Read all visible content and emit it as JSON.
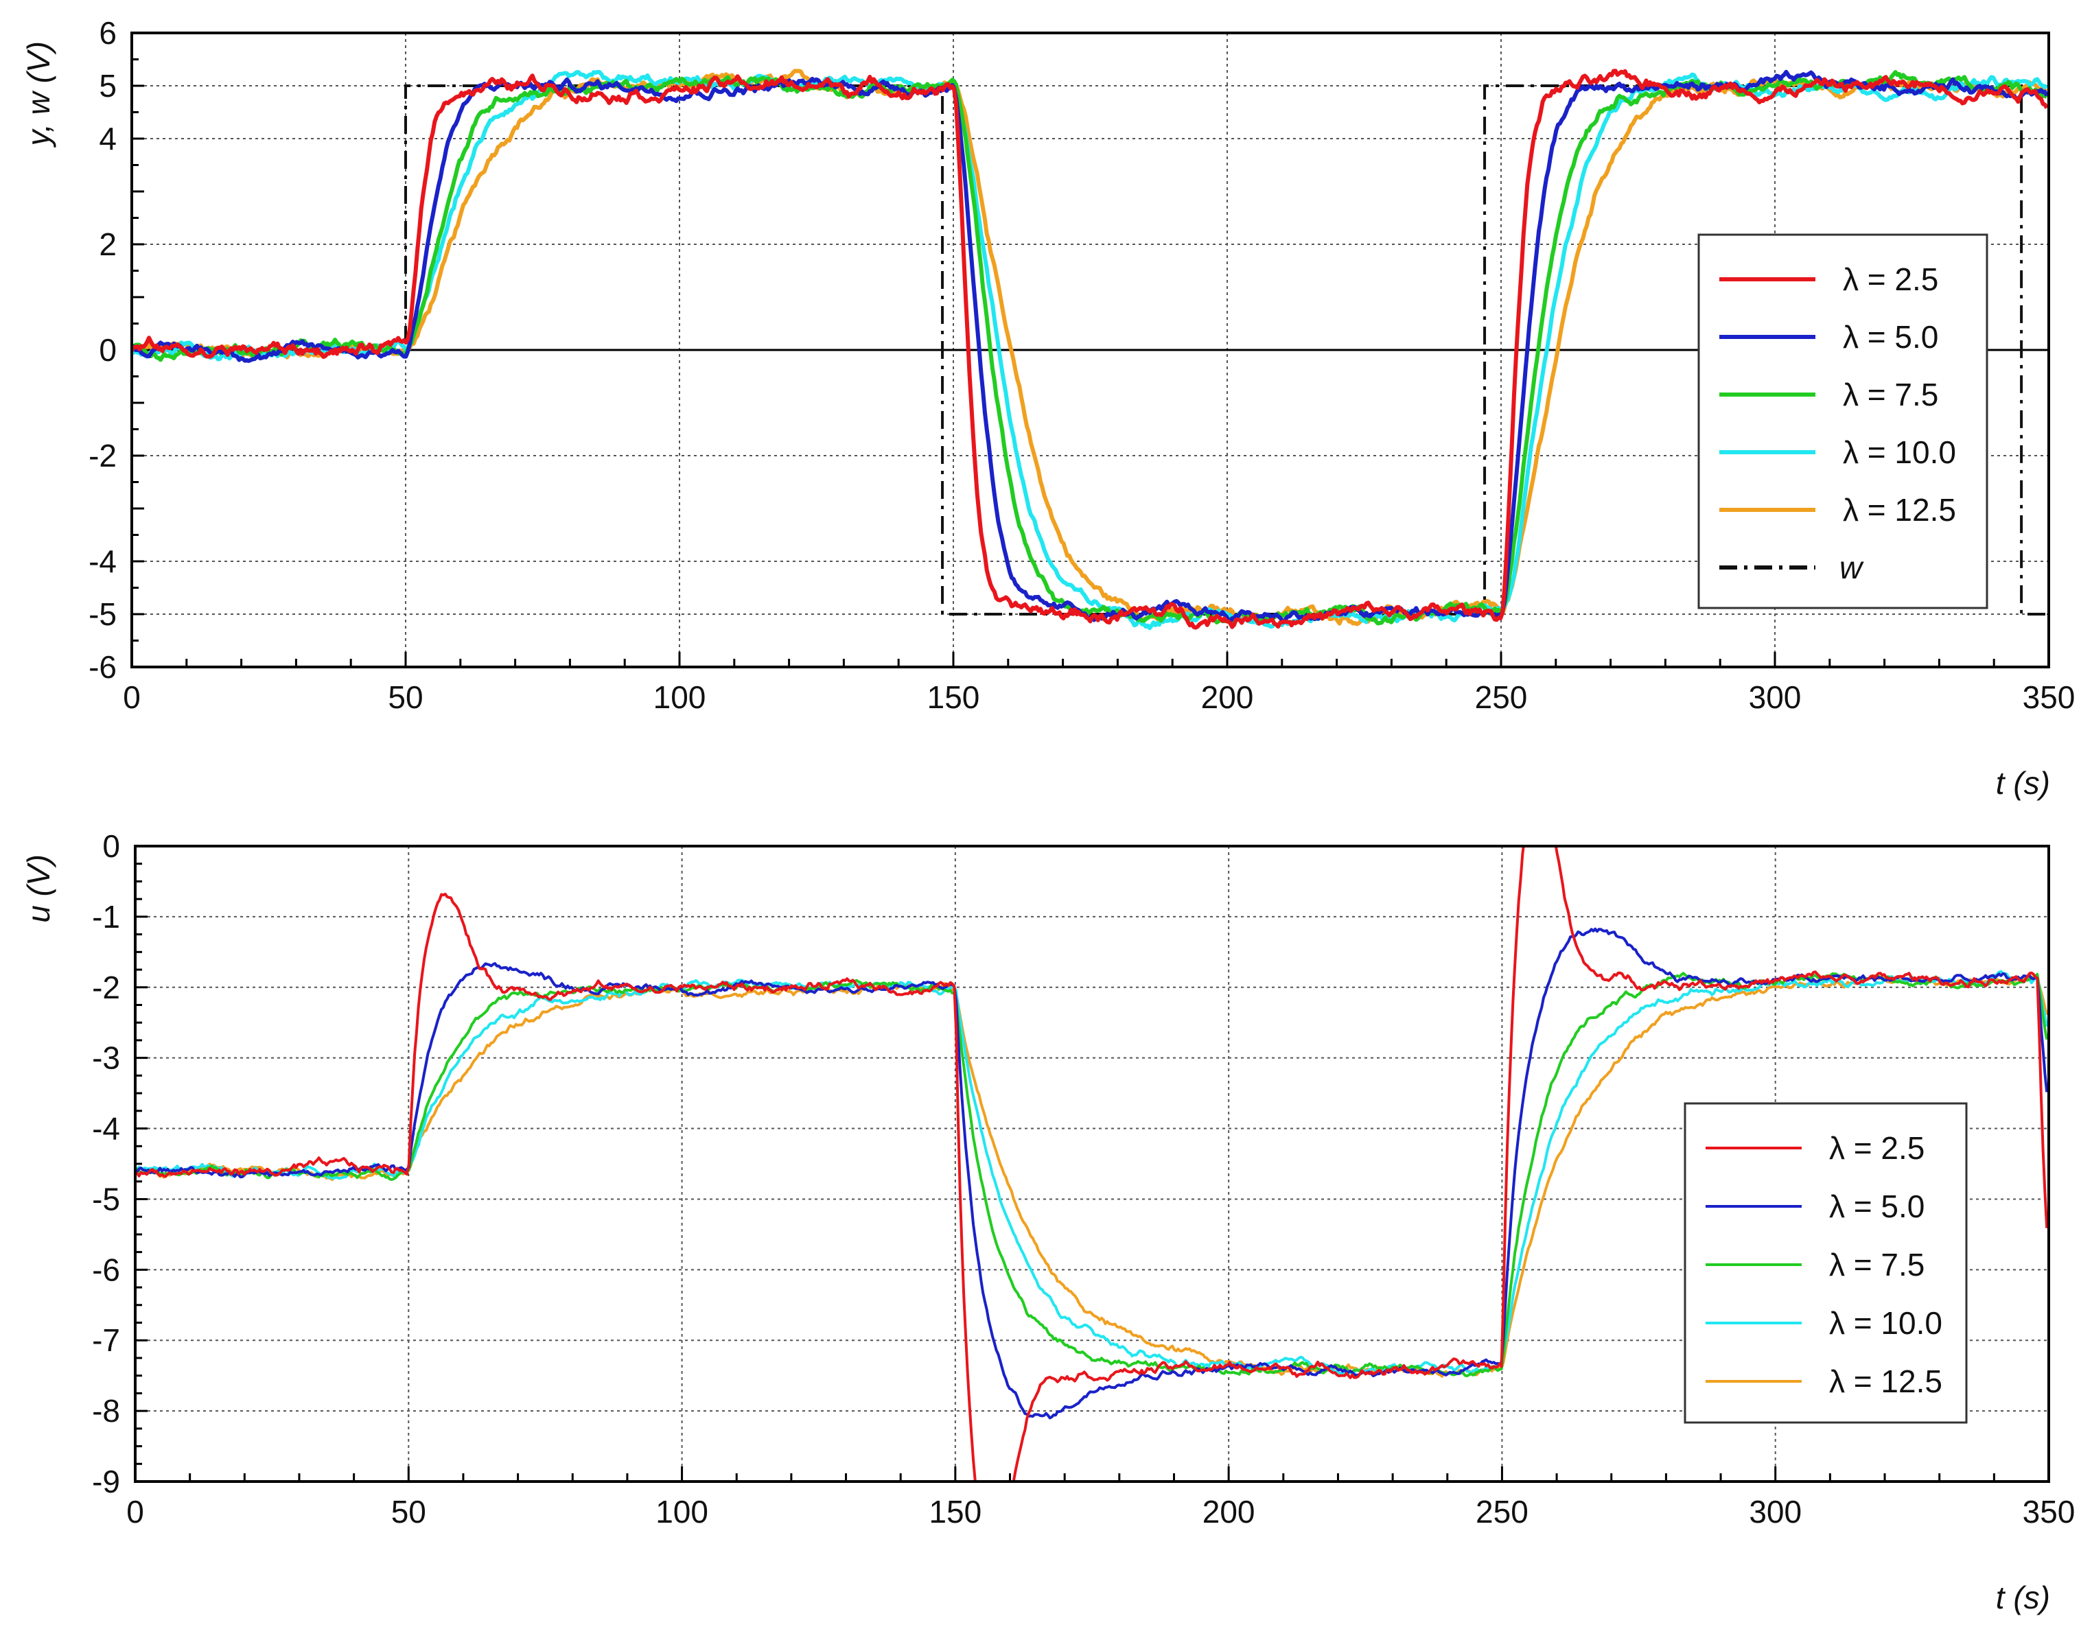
{
  "chart_data": [
    {
      "type": "line",
      "ylabel": "y, w (V)",
      "xlabel": "t (s)",
      "xlim": [
        0,
        350
      ],
      "ylim": [
        -6,
        6
      ],
      "xticks": [
        "0",
        "50",
        "100",
        "150",
        "200",
        "250",
        "300",
        "350"
      ],
      "yticks": [
        "-6",
        "-5",
        "-4",
        "-2",
        "0",
        "2",
        "4",
        "5",
        "6"
      ],
      "grid": true,
      "legend_position": "right",
      "series": [
        {
          "name": "λ = 2.5",
          "lambda": 2.5,
          "color": "#e8161c",
          "tau": 3.5,
          "overshoot": 0.25
        },
        {
          "name": "λ = 5.0",
          "lambda": 5.0,
          "color": "#1a22c8",
          "tau": 6.0,
          "overshoot": 0.3
        },
        {
          "name": "λ = 7.5",
          "lambda": 7.5,
          "color": "#22cc22",
          "tau": 8.5,
          "overshoot": 0.05
        },
        {
          "name": "λ = 10.0",
          "lambda": 10.0,
          "color": "#22e6f0",
          "tau": 10.5,
          "overshoot": 0.0
        },
        {
          "name": "λ = 12.5",
          "lambda": 12.5,
          "color": "#f0a020",
          "tau": 13.0,
          "overshoot": 0.0
        }
      ],
      "reference": {
        "name": "w",
        "steps": [
          [
            0,
            0
          ],
          [
            50,
            5
          ],
          [
            148,
            -5
          ],
          [
            247,
            5
          ],
          [
            345,
            -5
          ]
        ]
      },
      "step_times": [
        50,
        150,
        250,
        348
      ],
      "levels": [
        0,
        5,
        -5,
        5,
        4
      ]
    },
    {
      "type": "line",
      "ylabel": "u (V)",
      "xlabel": "t (s)",
      "xlim": [
        0,
        350
      ],
      "ylim": [
        -9,
        0
      ],
      "xticks": [
        "0",
        "50",
        "100",
        "150",
        "200",
        "250",
        "300",
        "350"
      ],
      "yticks": [
        "-9",
        "-8",
        "-7",
        "-6",
        "-5",
        "-4",
        "-3",
        "-2",
        "-1",
        "0"
      ],
      "grid": true,
      "legend_position": "right",
      "series": [
        {
          "name": "λ = 2.5",
          "lambda": 2.5,
          "color": "#e8161c",
          "tau": 1.5
        },
        {
          "name": "λ = 5.0",
          "lambda": 5.0,
          "color": "#1a22c8",
          "tau": 4.0
        },
        {
          "name": "λ = 7.5",
          "lambda": 7.5,
          "color": "#22cc22",
          "tau": 7.0
        },
        {
          "name": "λ = 10.0",
          "lambda": 10.0,
          "color": "#22e6f0",
          "tau": 10.0
        },
        {
          "name": "λ = 12.5",
          "lambda": 12.5,
          "color": "#f0a020",
          "tau": 13.0
        }
      ],
      "step_times": [
        50,
        150,
        250,
        348
      ],
      "levels": [
        -4.6,
        -2.0,
        -7.4,
        -1.9,
        -6.2
      ]
    }
  ]
}
